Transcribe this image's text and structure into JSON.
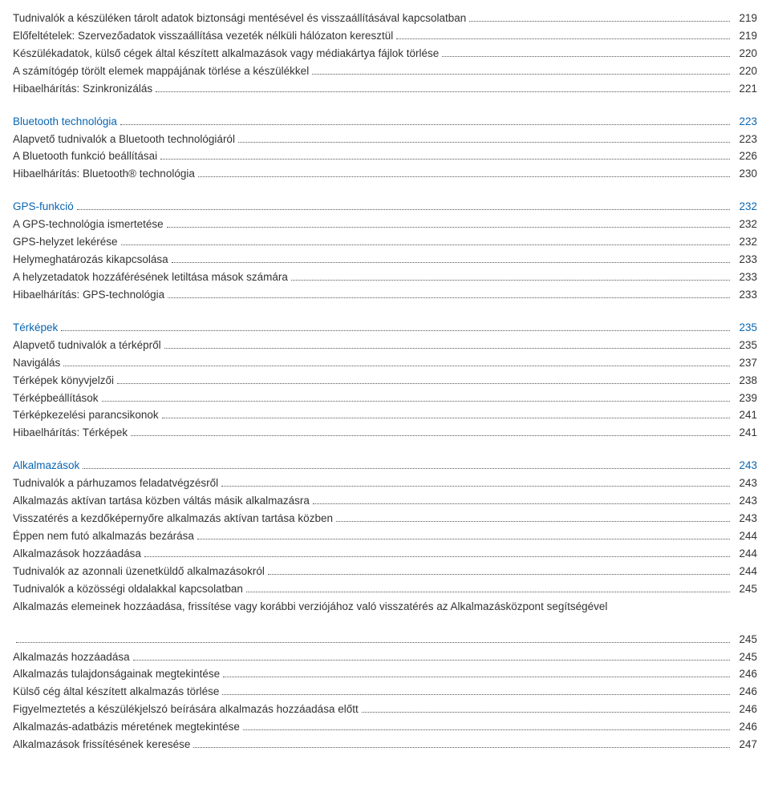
{
  "sections": [
    {
      "items": [
        {
          "label": "Tudnivalók a készüléken tárolt adatok biztonsági mentésével és visszaállításával kapcsolatban",
          "page": "219",
          "link": false
        },
        {
          "label": "Előfeltételek: Szervezőadatok visszaállítása vezeték nélküli hálózaton keresztül",
          "page": "219",
          "link": false
        },
        {
          "label": "Készülékadatok, külső cégek által készített alkalmazások vagy médiakártya fájlok törlése",
          "page": "220",
          "link": false
        },
        {
          "label": "A számítógép törölt elemek mappájának törlése a készülékkel",
          "page": "220",
          "link": false
        },
        {
          "label": "Hibaelhárítás: Szinkronizálás",
          "page": "221",
          "link": false
        }
      ]
    },
    {
      "items": [
        {
          "label": "Bluetooth technológia",
          "page": "223",
          "link": true
        },
        {
          "label": "Alapvető tudnivalók a Bluetooth technológiáról",
          "page": "223",
          "link": false
        },
        {
          "label": "A Bluetooth funkció beállításai",
          "page": "226",
          "link": false
        },
        {
          "label": "Hibaelhárítás: Bluetooth® technológia",
          "page": "230",
          "link": false
        }
      ]
    },
    {
      "items": [
        {
          "label": "GPS-funkció",
          "page": "232",
          "link": true
        },
        {
          "label": "A GPS-technológia ismertetése",
          "page": "232",
          "link": false
        },
        {
          "label": "GPS-helyzet lekérése",
          "page": "232",
          "link": false
        },
        {
          "label": "Helymeghatározás kikapcsolása",
          "page": "233",
          "link": false
        },
        {
          "label": "A helyzetadatok hozzáférésének letiltása mások számára",
          "page": "233",
          "link": false
        },
        {
          "label": "Hibaelhárítás: GPS-technológia",
          "page": "233",
          "link": false
        }
      ]
    },
    {
      "items": [
        {
          "label": "Térképek",
          "page": "235",
          "link": true
        },
        {
          "label": "Alapvető tudnivalók a térképről",
          "page": "235",
          "link": false
        },
        {
          "label": "Navigálás",
          "page": "237",
          "link": false
        },
        {
          "label": "Térképek könyvjelzői",
          "page": "238",
          "link": false
        },
        {
          "label": "Térképbeállítások",
          "page": "239",
          "link": false
        },
        {
          "label": "Térképkezelési parancsikonok",
          "page": "241",
          "link": false
        },
        {
          "label": "Hibaelhárítás: Térképek",
          "page": "241",
          "link": false
        }
      ]
    },
    {
      "items": [
        {
          "label": "Alkalmazások",
          "page": "243",
          "link": true
        },
        {
          "label": "Tudnivalók a párhuzamos feladatvégzésről",
          "page": "243",
          "link": false
        },
        {
          "label": "Alkalmazás aktívan tartása közben váltás másik alkalmazásra",
          "page": "243",
          "link": false
        },
        {
          "label": "Visszatérés a kezdőképernyőre alkalmazás aktívan tartása közben",
          "page": "243",
          "link": false
        },
        {
          "label": "Éppen nem futó alkalmazás bezárása",
          "page": "244",
          "link": false
        },
        {
          "label": "Alkalmazások hozzáadása",
          "page": "244",
          "link": false
        },
        {
          "label": "Tudnivalók az azonnali üzenetküldő alkalmazásokról",
          "page": "244",
          "link": false
        },
        {
          "label": "Tudnivalók a közösségi oldalakkal kapcsolatban",
          "page": "245",
          "link": false
        },
        {
          "label": "Alkalmazás elemeinek hozzáadása, frissítése vagy korábbi verziójához való visszatérés az Alkalmazásközpont segítségével",
          "page": "",
          "link": false,
          "nodots": true
        }
      ]
    },
    {
      "items": [
        {
          "label": "",
          "page": "245",
          "link": false
        },
        {
          "label": "Alkalmazás hozzáadása",
          "page": "245",
          "link": false
        },
        {
          "label": "Alkalmazás tulajdonságainak megtekintése",
          "page": "246",
          "link": false
        },
        {
          "label": "Külső cég által készített alkalmazás törlése",
          "page": "246",
          "link": false
        },
        {
          "label": "Figyelmeztetés a készülékjelszó beírására alkalmazás hozzáadása előtt",
          "page": "246",
          "link": false
        },
        {
          "label": "Alkalmazás-adatbázis méretének megtekintése",
          "page": "246",
          "link": false
        },
        {
          "label": "Alkalmazások frissítésének keresése",
          "page": "247",
          "link": false
        }
      ]
    }
  ]
}
